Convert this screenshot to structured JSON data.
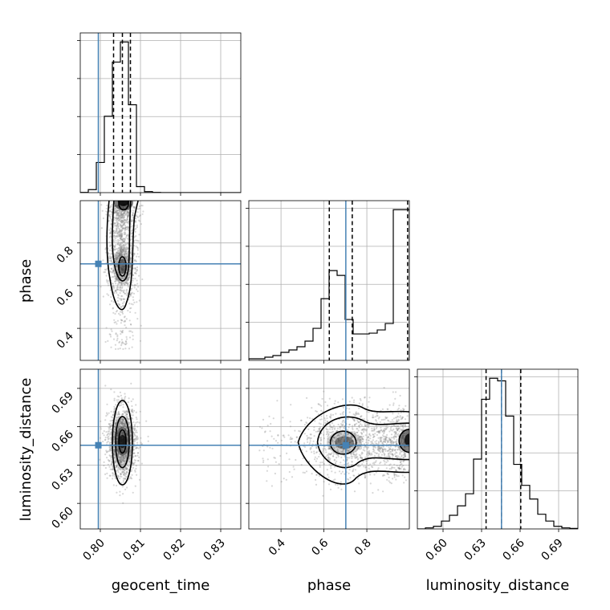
{
  "chart_data": {
    "type": "corner",
    "parameters": [
      {
        "name": "geocent_time",
        "label": "geocent_time",
        "range": [
          0.795,
          0.835
        ],
        "ticks": [
          "0.80",
          "0.81",
          "0.82",
          "0.83"
        ],
        "tick_values": [
          0.8,
          0.81,
          0.82,
          0.83
        ],
        "truth": 0.7995
      },
      {
        "name": "phase",
        "label": "phase",
        "range": [
          0.25,
          0.998
        ],
        "ticks": [
          "0.4",
          "0.6",
          "0.8"
        ],
        "tick_values": [
          0.4,
          0.6,
          0.8
        ],
        "truth": 0.702
      },
      {
        "name": "luminosity_distance",
        "label": "luminosity_distance",
        "range": [
          0.58,
          0.705
        ],
        "ticks": [
          "0.60",
          "0.63",
          "0.66",
          "0.69"
        ],
        "tick_values": [
          0.6,
          0.63,
          0.66,
          0.69
        ],
        "truth": 0.6455
      }
    ],
    "histograms": [
      {
        "param": "geocent_time",
        "bin_edges": [
          0.795,
          0.797,
          0.799,
          0.801,
          0.803,
          0.805,
          0.807,
          0.809,
          0.811,
          0.813,
          0.815,
          0.817,
          0.819,
          0.821,
          0.823,
          0.825,
          0.827,
          0.829,
          0.831,
          0.833,
          0.835
        ],
        "counts": [
          0.5,
          6,
          60,
          152,
          260,
          300,
          175,
          12,
          2,
          0.5,
          0,
          0,
          0,
          0,
          0,
          0,
          0,
          0,
          0,
          0
        ],
        "quantiles": [
          0.8033,
          0.8055,
          0.8075
        ]
      },
      {
        "param": "phase",
        "bin_edges": [
          0.25,
          0.2874,
          0.3248,
          0.3622,
          0.3996,
          0.437,
          0.4744,
          0.5118,
          0.5492,
          0.5866,
          0.624,
          0.6614,
          0.6988,
          0.7362,
          0.7736,
          0.811,
          0.8484,
          0.8858,
          0.9232,
          0.9606,
          0.998
        ],
        "counts": [
          2,
          2,
          4,
          6,
          10,
          13,
          17,
          24,
          40,
          77,
          112,
          106,
          51,
          33,
          33,
          34,
          38,
          46,
          188,
          188
        ],
        "quantiles": [
          0.625,
          0.732,
          0.99
        ]
      },
      {
        "param": "luminosity_distance",
        "bin_edges": [
          0.58,
          0.58625,
          0.5925,
          0.59875,
          0.605,
          0.61125,
          0.6175,
          0.62375,
          0.63,
          0.63625,
          0.6425,
          0.64875,
          0.655,
          0.66125,
          0.6675,
          0.67375,
          0.68,
          0.68625,
          0.6925,
          0.69875,
          0.705
        ],
        "counts": [
          0,
          2,
          5,
          15,
          26,
          44,
          67,
          133,
          247,
          287,
          282,
          215,
          123,
          83,
          57,
          28,
          15,
          5,
          2,
          1
        ],
        "quantiles": [
          0.6335,
          0.6455,
          0.6605
        ]
      }
    ],
    "pairs": [
      {
        "x": "geocent_time",
        "y": "phase",
        "mean_x": 0.8055,
        "mode_y": 0.695
      },
      {
        "x": "geocent_time",
        "y": "luminosity_distance",
        "mean_x": 0.8055,
        "mean_y": 0.6475
      },
      {
        "x": "phase",
        "y": "luminosity_distance",
        "modes_x": [
          0.695,
          0.99
        ],
        "mean_y": 0.648
      }
    ],
    "truth_color": "#4682b4",
    "grid": true,
    "title": ""
  }
}
